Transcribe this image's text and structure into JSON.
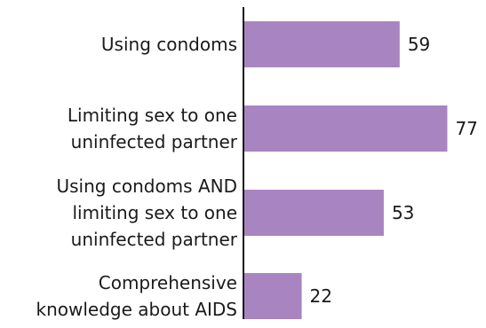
{
  "chart_data": {
    "type": "bar",
    "orientation": "horizontal",
    "categories": [
      [
        "Using condoms"
      ],
      [
        "Limiting sex to one",
        "uninfected partner"
      ],
      [
        "Using condoms AND",
        "limiting sex to one",
        "uninfected partner"
      ],
      [
        "Comprehensive",
        "knowledge about AIDS"
      ]
    ],
    "values": [
      59,
      77,
      53,
      22
    ],
    "xlim": [
      0,
      100
    ],
    "bar_color": "#a885c0",
    "axis_color": "#1a1a1a",
    "grid": false,
    "legend": "none",
    "data_labels": true
  }
}
